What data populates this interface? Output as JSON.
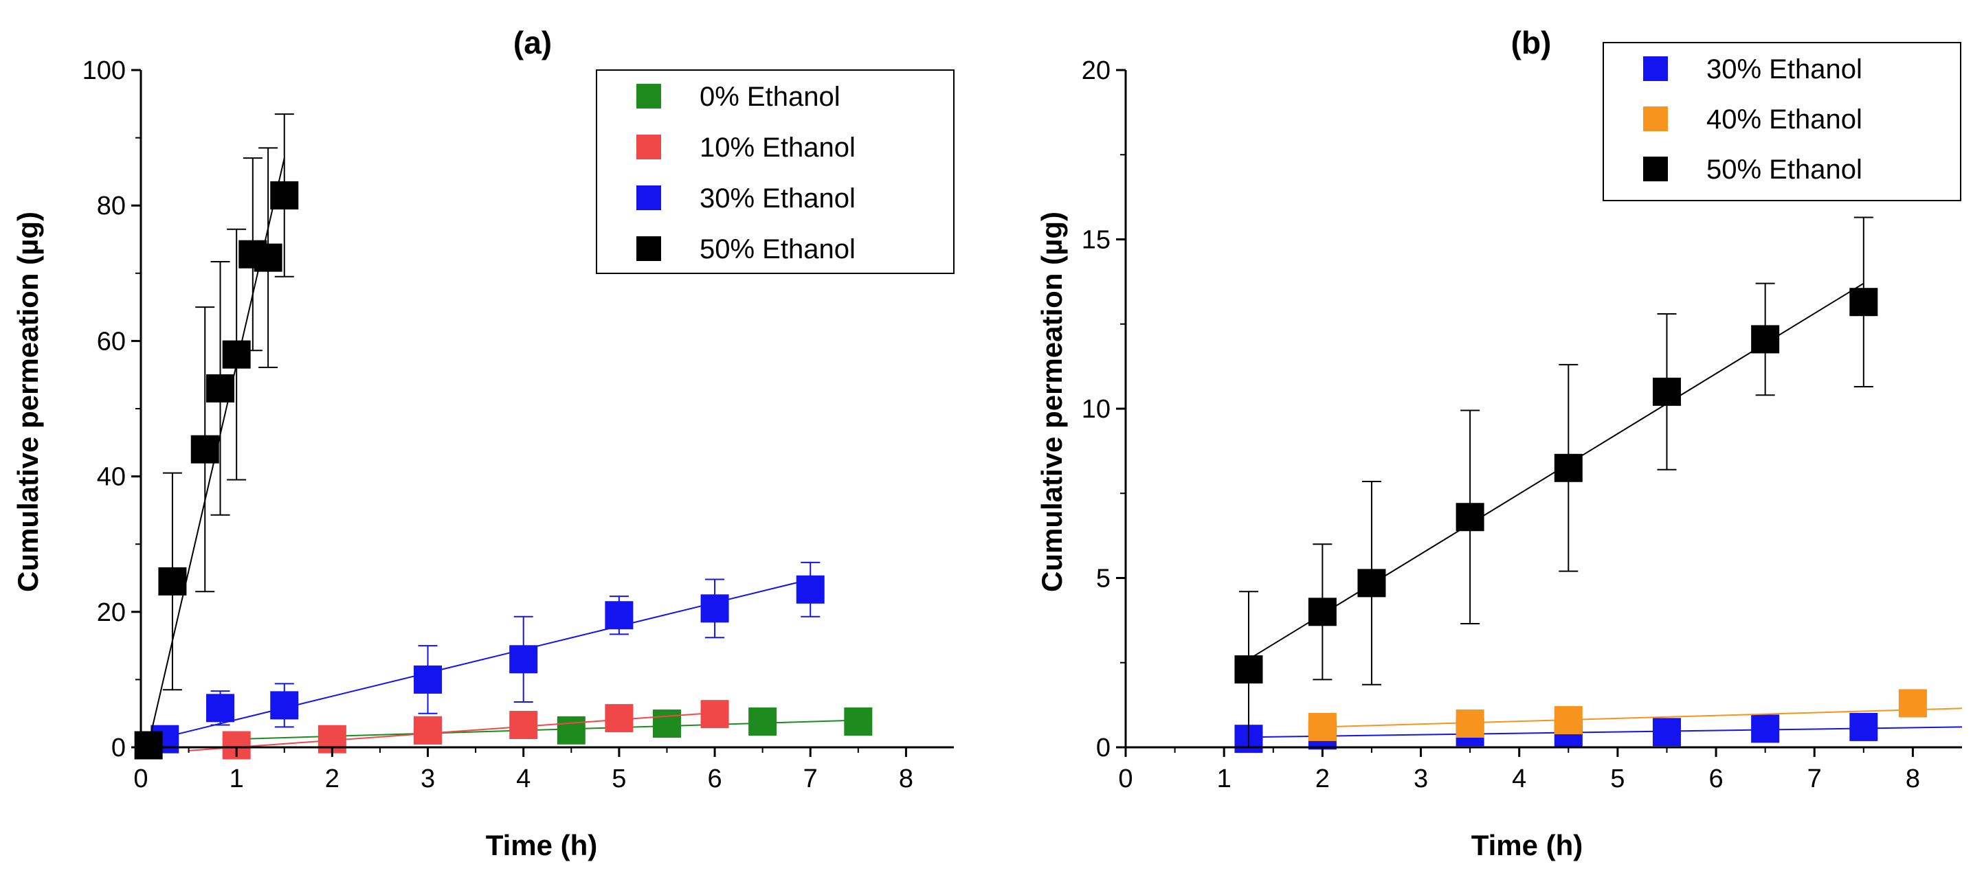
{
  "chart_data": [
    {
      "type": "scatter",
      "panel_label": "(a)",
      "xlabel": "Time (h)",
      "ylabel": "Cumulative permeation (µg)",
      "xlim": [
        0,
        8.5
      ],
      "ylim": [
        0,
        100
      ],
      "xticks": [
        0,
        1,
        2,
        3,
        4,
        5,
        6,
        7,
        8
      ],
      "yticks": [
        0,
        20,
        40,
        60,
        80,
        100
      ],
      "grid": false,
      "legend_position": "top-right",
      "series": [
        {
          "name": "0% Ethanol",
          "color": "#1e8b1e",
          "points": [
            {
              "x": 3,
              "y": 2.5,
              "err": 0
            },
            {
              "x": 4.5,
              "y": 2.5,
              "err": 0
            },
            {
              "x": 5.5,
              "y": 3.5,
              "err": 0
            },
            {
              "x": 6.5,
              "y": 3.8,
              "err": 0
            },
            {
              "x": 7.5,
              "y": 3.8,
              "err": 0
            }
          ],
          "fit": {
            "x1": 1,
            "y1": 1.2,
            "x2": 7.5,
            "y2": 4.0
          }
        },
        {
          "name": "10% Ethanol",
          "color": "#f04848",
          "points": [
            {
              "x": 1,
              "y": 0.3,
              "err": 0
            },
            {
              "x": 2,
              "y": 1.2,
              "err": 0
            },
            {
              "x": 3,
              "y": 2.5,
              "err": 0
            },
            {
              "x": 4,
              "y": 3.3,
              "err": 0
            },
            {
              "x": 5,
              "y": 4.3,
              "err": 0
            },
            {
              "x": 6,
              "y": 4.9,
              "err": 0
            }
          ],
          "fit": {
            "x1": 0.5,
            "y1": -0.5,
            "x2": 6.0,
            "y2": 5.1
          }
        },
        {
          "name": "30% Ethanol",
          "color": "#1414f0",
          "points": [
            {
              "x": 0.25,
              "y": 1.2,
              "err": 0.5
            },
            {
              "x": 0.83,
              "y": 5.8,
              "err": 2.5
            },
            {
              "x": 1.5,
              "y": 6.2,
              "err": 3.2
            },
            {
              "x": 3,
              "y": 10.0,
              "err": 5.0
            },
            {
              "x": 4,
              "y": 13.0,
              "err": 6.3
            },
            {
              "x": 5,
              "y": 19.5,
              "err": 2.8
            },
            {
              "x": 6,
              "y": 20.5,
              "err": 4.3
            },
            {
              "x": 7,
              "y": 23.3,
              "err": 4.0
            }
          ],
          "fit": {
            "x1": 0.25,
            "y1": 1.5,
            "x2": 7.0,
            "y2": 24.8
          }
        },
        {
          "name": "50% Ethanol",
          "color": "#000000",
          "points": [
            {
              "x": 0.08,
              "y": 0.3,
              "err": 0
            },
            {
              "x": 0.33,
              "y": 24.5,
              "err": 16.0
            },
            {
              "x": 0.67,
              "y": 44.0,
              "err": 21.0
            },
            {
              "x": 0.83,
              "y": 53.0,
              "err": 18.7
            },
            {
              "x": 1.0,
              "y": 58.0,
              "err": 18.5
            },
            {
              "x": 1.17,
              "y": 72.8,
              "err": 14.2
            },
            {
              "x": 1.33,
              "y": 72.3,
              "err": 16.2
            },
            {
              "x": 1.5,
              "y": 81.5,
              "err": 12.0
            }
          ],
          "fit": {
            "x1": 0.08,
            "y1": 0.5,
            "x2": 1.5,
            "y2": 87.0
          }
        }
      ]
    },
    {
      "type": "scatter",
      "panel_label": "(b)",
      "xlabel": "Time (h)",
      "ylabel": "Cumulative permeation (µg)",
      "xlim": [
        0,
        8.5
      ],
      "ylim": [
        0,
        20
      ],
      "xticks": [
        0,
        1,
        2,
        3,
        4,
        5,
        6,
        7,
        8
      ],
      "yticks": [
        0,
        5,
        10,
        15,
        20
      ],
      "grid": false,
      "legend_position": "top-right",
      "series": [
        {
          "name": "30% Ethanol",
          "color": "#1414f0",
          "points": [
            {
              "x": 1.25,
              "y": 0.25,
              "err": 0.15
            },
            {
              "x": 2,
              "y": 0.35,
              "err": 0.15
            },
            {
              "x": 3.5,
              "y": 0.45,
              "err": 0.1
            },
            {
              "x": 4.5,
              "y": 0.4,
              "err": 0.1
            },
            {
              "x": 5.5,
              "y": 0.45,
              "err": 0.1
            },
            {
              "x": 6.5,
              "y": 0.55,
              "err": 0.1
            },
            {
              "x": 7.5,
              "y": 0.6,
              "err": 0.1
            }
          ],
          "fit": {
            "x1": 1.25,
            "y1": 0.3,
            "x2": 8.5,
            "y2": 0.6
          }
        },
        {
          "name": "40% Ethanol",
          "color": "#f7941d",
          "points": [
            {
              "x": 2,
              "y": 0.6,
              "err": 0.3
            },
            {
              "x": 3.5,
              "y": 0.7,
              "err": 0.2
            },
            {
              "x": 4.5,
              "y": 0.8,
              "err": 0.2
            },
            {
              "x": 8,
              "y": 1.3,
              "err": 0
            }
          ],
          "fit": {
            "x1": 2,
            "y1": 0.6,
            "x2": 8.5,
            "y2": 1.15
          }
        },
        {
          "name": "50% Ethanol",
          "color": "#000000",
          "points": [
            {
              "x": 1.25,
              "y": 2.3,
              "err": 2.3
            },
            {
              "x": 2,
              "y": 4.0,
              "err": 2.0
            },
            {
              "x": 2.5,
              "y": 4.85,
              "err": 3.0
            },
            {
              "x": 3.5,
              "y": 6.8,
              "err": 3.15
            },
            {
              "x": 4.5,
              "y": 8.25,
              "err": 3.05
            },
            {
              "x": 5.5,
              "y": 10.5,
              "err": 2.3
            },
            {
              "x": 6.5,
              "y": 12.05,
              "err": 1.65
            },
            {
              "x": 7.5,
              "y": 13.15,
              "err": 2.5
            }
          ],
          "fit": {
            "x1": 1.25,
            "y1": 2.6,
            "x2": 7.5,
            "y2": 13.7
          }
        }
      ]
    }
  ]
}
